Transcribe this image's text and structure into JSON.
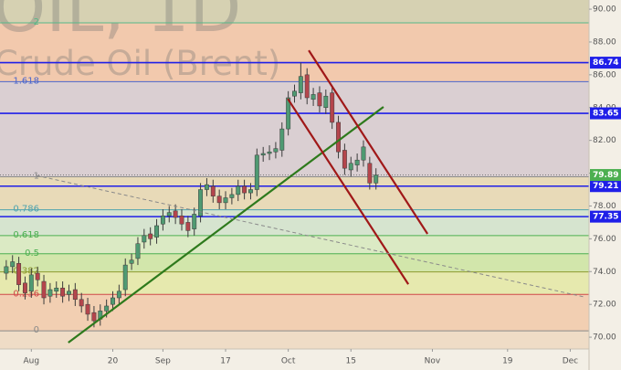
{
  "chart_data": {
    "type": "candlestick",
    "title": "OIL, 1D",
    "subtitle": "Crude Oil (Brent)",
    "x": [
      -45,
      -44,
      -43,
      -42,
      -41,
      -40,
      -39,
      -38,
      -37,
      -36,
      -35,
      -34,
      -33,
      -32,
      -31,
      -30,
      -29,
      -28,
      -27,
      -26,
      -25,
      -24,
      -23,
      -22,
      -21,
      -20,
      -19,
      -18,
      -17,
      -16,
      -15,
      -14,
      -13,
      -12,
      -11,
      -10,
      -9,
      -8,
      -7,
      -6,
      -5,
      -4,
      -3,
      -2,
      -1,
      0,
      1,
      2,
      3,
      4,
      5,
      6,
      7,
      8,
      9,
      10,
      11,
      12,
      13,
      14
    ],
    "open": [
      73.9,
      74.3,
      74.5,
      73.3,
      72.8,
      73.9,
      73.4,
      72.5,
      72.8,
      73.0,
      72.6,
      72.9,
      72.3,
      72.0,
      71.5,
      71.1,
      71.6,
      72.0,
      72.4,
      72.9,
      74.5,
      74.8,
      75.8,
      76.3,
      76.1,
      76.9,
      77.4,
      77.7,
      77.4,
      77.0,
      76.6,
      77.4,
      79.0,
      79.2,
      78.6,
      78.2,
      78.5,
      78.7,
      79.2,
      78.8,
      79.0,
      81.1,
      81.2,
      81.3,
      81.4,
      82.7,
      84.7,
      84.9,
      86.0,
      84.5,
      84.9,
      84.0,
      84.9,
      83.1,
      81.4,
      80.2,
      80.5,
      80.8,
      80.6,
      79.4
    ],
    "high": [
      74.7,
      75.0,
      74.9,
      73.7,
      74.2,
      74.3,
      73.8,
      73.3,
      73.4,
      73.4,
      73.2,
      73.3,
      72.7,
      72.4,
      71.9,
      72.0,
      72.3,
      72.8,
      73.2,
      74.8,
      75.1,
      76.1,
      76.6,
      76.7,
      77.2,
      77.8,
      78.0,
      78.1,
      77.8,
      77.4,
      77.9,
      79.4,
      79.7,
      79.6,
      79.0,
      78.9,
      79.1,
      79.6,
      79.6,
      79.4,
      81.5,
      81.6,
      81.7,
      81.9,
      83.1,
      85.0,
      85.4,
      86.74,
      86.4,
      85.2,
      85.3,
      85.1,
      85.3,
      83.5,
      81.8,
      81.0,
      81.2,
      82.0,
      81.0,
      80.3
    ],
    "low": [
      73.5,
      73.9,
      72.8,
      72.3,
      72.4,
      73.1,
      72.0,
      72.1,
      72.4,
      72.1,
      72.2,
      71.9,
      71.5,
      71.0,
      70.6,
      70.7,
      71.2,
      71.6,
      72.0,
      72.5,
      74.1,
      74.4,
      75.4,
      75.6,
      75.7,
      76.5,
      77.0,
      76.9,
      76.5,
      76.1,
      76.2,
      77.0,
      78.6,
      78.2,
      77.8,
      77.8,
      78.1,
      78.3,
      78.4,
      78.4,
      78.6,
      80.7,
      80.8,
      80.9,
      81.0,
      82.3,
      84.3,
      84.5,
      84.2,
      84.1,
      83.7,
      83.6,
      82.7,
      80.9,
      79.9,
      79.8,
      80.1,
      80.4,
      79.0,
      79.0
    ],
    "close": [
      74.3,
      74.6,
      73.2,
      72.7,
      73.8,
      73.5,
      72.4,
      72.9,
      73.0,
      72.5,
      72.8,
      72.3,
      71.9,
      71.4,
      71.0,
      71.6,
      71.9,
      72.4,
      72.8,
      74.4,
      74.7,
      75.7,
      76.2,
      76.0,
      76.8,
      77.4,
      77.6,
      77.3,
      76.9,
      76.5,
      77.5,
      79.0,
      79.3,
      78.6,
      78.2,
      78.5,
      78.7,
      79.2,
      78.8,
      79.0,
      81.1,
      81.2,
      81.3,
      81.5,
      82.7,
      84.6,
      85.0,
      85.9,
      84.6,
      84.8,
      84.1,
      84.7,
      83.1,
      81.3,
      80.3,
      80.6,
      80.8,
      81.6,
      79.4,
      79.89
    ],
    "up_color": "#4f9a72",
    "down_color": "#b4454c",
    "xlim": [
      -46,
      48
    ],
    "xticks": [
      {
        "value": -41,
        "label": "Aug"
      },
      {
        "value": -28,
        "label": "20"
      },
      {
        "value": -20,
        "label": "Sep"
      },
      {
        "value": -10,
        "label": "17"
      },
      {
        "value": 0,
        "label": "Oct"
      },
      {
        "value": 10,
        "label": "15"
      },
      {
        "value": 23,
        "label": "Nov"
      },
      {
        "value": 35,
        "label": "19"
      },
      {
        "value": 45,
        "label": "Dec"
      }
    ],
    "ylim": [
      69.28,
      90.56
    ],
    "yticks": [
      {
        "value": 70,
        "label": "70.00"
      },
      {
        "value": 72,
        "label": "72.00"
      },
      {
        "value": 74,
        "label": "74.00"
      },
      {
        "value": 76,
        "label": "76.00"
      },
      {
        "value": 78,
        "label": "78.00"
      },
      {
        "value": 80,
        "label": "80.00"
      },
      {
        "value": 82,
        "label": "82.00"
      },
      {
        "value": 84,
        "label": "84.00"
      },
      {
        "value": 86,
        "label": "86.00"
      },
      {
        "value": 88,
        "label": "88.00"
      },
      {
        "value": 90,
        "label": "90.00"
      }
    ],
    "fib": {
      "low": 70.39,
      "high": 79.78,
      "levels": [
        0,
        0.236,
        0.382,
        0.5,
        0.618,
        0.786,
        1,
        1.618,
        2
      ],
      "colors": [
        "#8a8a8a",
        "#d04848",
        "#8e9a2e",
        "#4caf50",
        "#4caf50",
        "#4fa3ae",
        "#8a8a8a",
        "#4a66cc",
        "#55b888"
      ],
      "band_colors": [
        "#f2cfb2",
        "#e6e9ae",
        "#d2e6ab",
        "#dbeac4",
        "#d6e4cf",
        "#e8dab8",
        "#dacfd2",
        "#f2c9ad"
      ]
    },
    "price_lines": [
      86.74,
      83.65,
      79.21,
      77.35
    ],
    "price_line_color": "#1f1fe8",
    "last_price": 79.89,
    "last_price_color": "#4caf50",
    "trendlines": [
      {
        "color": "#2e7a1c",
        "dashed": false,
        "points": [
          [
            -35.1,
            69.67
          ],
          [
            15.2,
            84.04
          ]
        ]
      },
      {
        "color": "#a01818",
        "dashed": false,
        "points": [
          [
            3.27,
            87.49
          ],
          [
            22.22,
            76.3
          ]
        ]
      },
      {
        "color": "#a01818",
        "dashed": false,
        "points": [
          [
            -0.08,
            84.54
          ],
          [
            19.16,
            73.23
          ]
        ]
      },
      {
        "color": "#8a8a8a",
        "dashed": true,
        "points": [
          [
            -40.17,
            79.86
          ],
          [
            47.29,
            72.45
          ]
        ]
      }
    ]
  }
}
